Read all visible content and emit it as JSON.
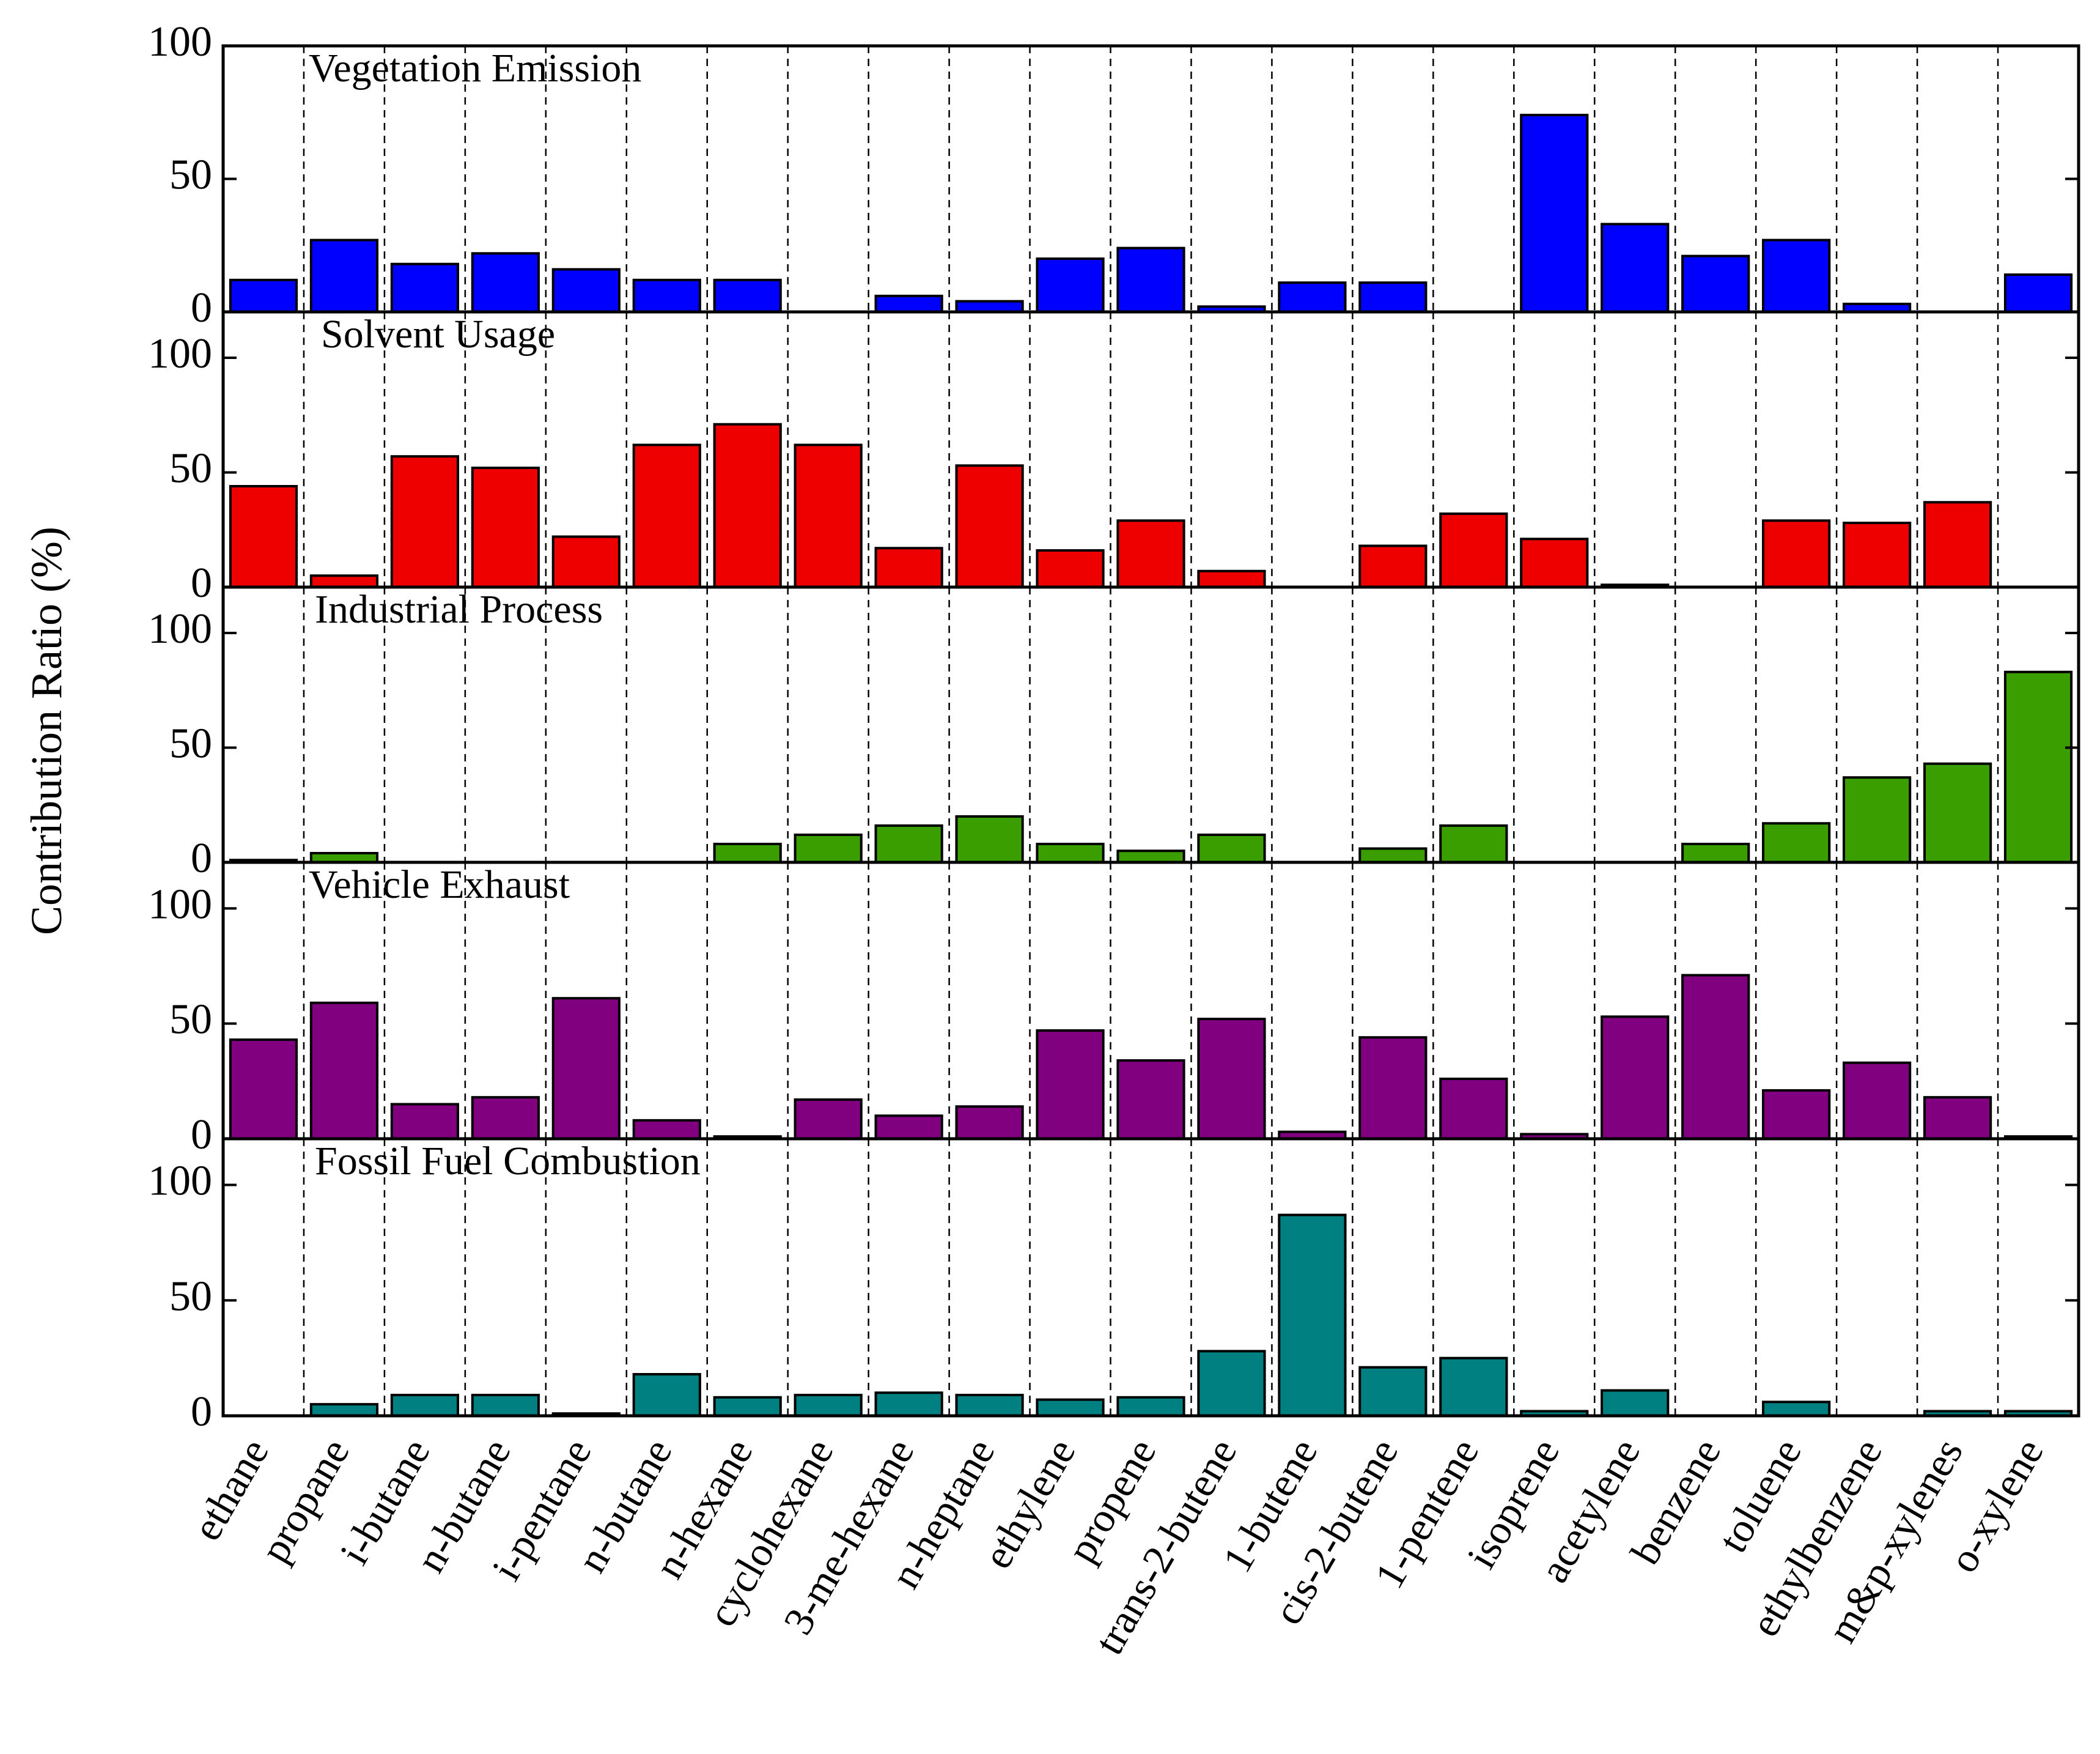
{
  "chart_data": {
    "type": "bar",
    "ylabel": "Contribution Ratio (%)",
    "categories": [
      "ethane",
      "propane",
      "i-butane",
      "n-butane",
      "i-pentane",
      "n-butane",
      "n-hexane",
      "cyclohexane",
      "3-me-hexane",
      "n-heptane",
      "ethylene",
      "propene",
      "trans-2-butene",
      "1-butene",
      "cis-2-butene",
      "1-pentene",
      "isoprene",
      "acetylene",
      "benzene",
      "toluene",
      "ethylbenzene",
      "m&p-xylenes",
      "o-xylene"
    ],
    "panels": [
      {
        "name": "Vegetation Emission",
        "color": "#0000ff",
        "ylim": [
          0,
          100
        ],
        "yticks": [
          0,
          50,
          100
        ],
        "values": [
          12,
          27,
          18,
          22,
          16,
          12,
          12,
          0,
          6,
          4,
          20,
          24,
          2,
          11,
          11,
          0,
          74,
          33,
          21,
          27,
          3,
          0,
          14
        ]
      },
      {
        "name": "Solvent Usage",
        "color": "#ee0000",
        "ylim": [
          0,
          120
        ],
        "yticks": [
          0,
          50,
          100
        ],
        "values": [
          44,
          5,
          57,
          52,
          22,
          62,
          71,
          62,
          17,
          53,
          16,
          29,
          7,
          0,
          18,
          32,
          21,
          1,
          0,
          29,
          28,
          37,
          0
        ]
      },
      {
        "name": "Industrial Process",
        "color": "#3a9e00",
        "ylim": [
          0,
          120
        ],
        "yticks": [
          0,
          50,
          100
        ],
        "values": [
          1,
          4,
          0,
          0,
          0,
          0,
          8,
          12,
          16,
          20,
          8,
          5,
          12,
          0,
          6,
          16,
          0,
          0,
          8,
          17,
          37,
          43,
          83
        ]
      },
      {
        "name": "Vehicle Exhaust",
        "color": "#800080",
        "ylim": [
          0,
          120
        ],
        "yticks": [
          0,
          50,
          100
        ],
        "values": [
          43,
          59,
          15,
          18,
          61,
          8,
          1,
          17,
          10,
          14,
          47,
          34,
          52,
          3,
          44,
          26,
          2,
          53,
          71,
          21,
          33,
          18,
          1
        ]
      },
      {
        "name": "Fossil Fuel Combustion",
        "color": "#008080",
        "ylim": [
          0,
          120
        ],
        "yticks": [
          0,
          50,
          100
        ],
        "values": [
          0,
          5,
          9,
          9,
          1,
          18,
          8,
          9,
          10,
          9,
          7,
          8,
          28,
          87,
          21,
          25,
          2,
          11,
          0,
          6,
          0,
          2,
          2
        ]
      }
    ]
  }
}
